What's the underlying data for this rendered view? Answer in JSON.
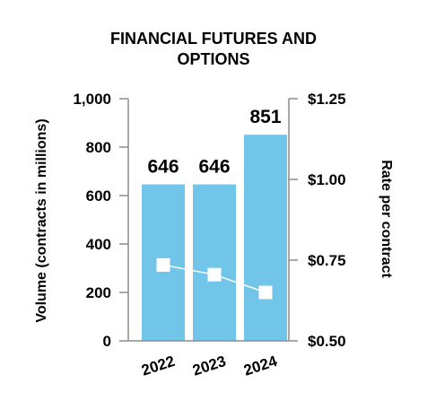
{
  "chart_data": {
    "type": "bar",
    "title_lines": [
      "FINANCIAL FUTURES AND",
      "OPTIONS"
    ],
    "categories": [
      "2022",
      "2023",
      "2024"
    ],
    "series": [
      {
        "type": "bar",
        "axis": "left",
        "values": [
          646,
          646,
          851
        ],
        "labels": [
          "646",
          "646",
          "851"
        ]
      },
      {
        "type": "line",
        "axis": "right",
        "values": [
          0.735,
          0.705,
          0.65
        ]
      }
    ],
    "y_left": {
      "label": "Volume (contracts in millions)",
      "range": [
        0,
        1000
      ],
      "ticks": [
        0,
        200,
        400,
        600,
        800,
        1000
      ],
      "tick_labels": [
        "0",
        "200",
        "400",
        "600",
        "800",
        "1,000"
      ]
    },
    "y_right": {
      "label": "Rate per contract",
      "range": [
        0.5,
        1.25
      ],
      "ticks": [
        0.5,
        0.75,
        1.0,
        1.25
      ],
      "tick_labels": [
        "$0.50",
        "$0.75",
        "$1.00",
        "$1.25"
      ]
    },
    "grid": false,
    "colors": {
      "bar": "#71c5e8",
      "line": "#ffffff",
      "axis": "#8c8c8c",
      "text": "#000000"
    }
  }
}
